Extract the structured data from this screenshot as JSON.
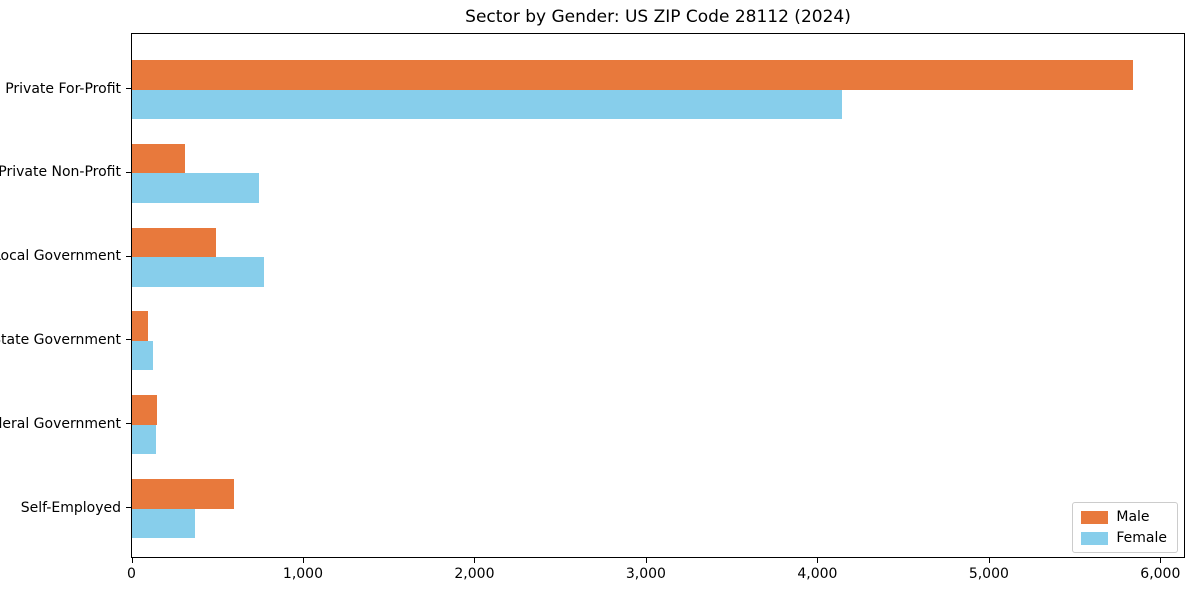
{
  "chart_data": {
    "type": "bar",
    "orientation": "horizontal",
    "title": "Sector by Gender: US ZIP Code 28112 (2024)",
    "categories": [
      "Private For-Profit",
      "Private Non-Profit",
      "Local Government",
      "State Government",
      "Federal Government",
      "Self-Employed"
    ],
    "series": [
      {
        "name": "Male",
        "color": "#E8793C",
        "values": [
          5840,
          310,
          490,
          95,
          145,
          595
        ]
      },
      {
        "name": "Female",
        "color": "#87CEEB",
        "values": [
          4140,
          740,
          770,
          125,
          140,
          370
        ]
      }
    ],
    "xlabel": "",
    "ylabel": "",
    "xlim": [
      0,
      6135
    ],
    "xticks": [
      0,
      1000,
      2000,
      3000,
      4000,
      5000,
      6000
    ],
    "xtick_labels": [
      "0",
      "1,000",
      "2,000",
      "3,000",
      "4,000",
      "5,000",
      "6,000"
    ],
    "grid": false,
    "legend_position": "lower right",
    "background_color": "#ffffff",
    "spine_color": "#000000"
  }
}
